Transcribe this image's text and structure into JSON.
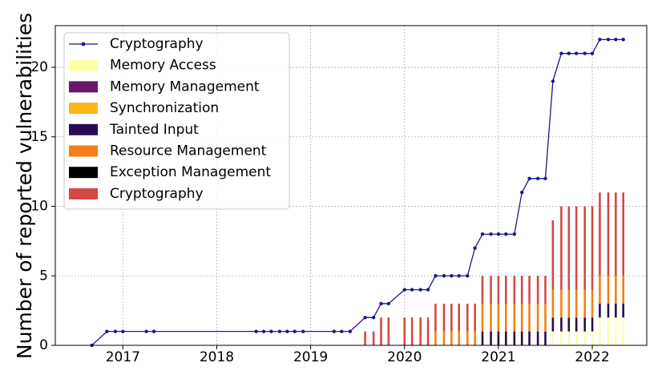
{
  "chart_data": {
    "type": "bar",
    "xlabel": "",
    "ylabel": "Number of reported vulnerabilities",
    "ylim": [
      0,
      23
    ],
    "yticks": [
      0,
      5,
      10,
      15,
      20
    ],
    "xlim": [
      2016.28,
      2022.58
    ],
    "xticks": [
      2017,
      2018,
      2019,
      2020,
      2021,
      2022
    ],
    "grid": true,
    "legend_position": "upper-left",
    "legend": [
      {
        "label": "Cryptography",
        "kind": "line",
        "color": "#1a1a8c"
      },
      {
        "label": "Memory Access",
        "kind": "bar",
        "color": "#fcffa4"
      },
      {
        "label": "Memory Management",
        "kind": "bar",
        "color": "#6a176e"
      },
      {
        "label": "Synchronization",
        "kind": "bar",
        "color": "#fbb61a"
      },
      {
        "label": "Tainted Input",
        "kind": "bar",
        "color": "#2a0a4e"
      },
      {
        "label": "Resource Management",
        "kind": "bar",
        "color": "#f57d15"
      },
      {
        "label": "Exception Management",
        "kind": "bar",
        "color": "#000004"
      },
      {
        "label": "Cryptography",
        "kind": "bar",
        "color": "#d44842"
      }
    ],
    "line_series": {
      "name": "Cryptography",
      "color": "#1a1a8c",
      "x": [
        2016.67,
        2016.83,
        2016.92,
        2017.0,
        2017.25,
        2017.33,
        2018.42,
        2018.5,
        2018.58,
        2018.67,
        2018.75,
        2018.83,
        2018.92,
        2019.25,
        2019.33,
        2019.42,
        2019.58,
        2019.67,
        2019.75,
        2019.83,
        2020.0,
        2020.08,
        2020.17,
        2020.25,
        2020.33,
        2020.42,
        2020.5,
        2020.58,
        2020.67,
        2020.75,
        2020.83,
        2020.92,
        2021.0,
        2021.08,
        2021.17,
        2021.25,
        2021.33,
        2021.42,
        2021.5,
        2021.58,
        2021.67,
        2021.75,
        2021.83,
        2021.92,
        2022.0,
        2022.08,
        2022.17,
        2022.25,
        2022.33
      ],
      "y": [
        0,
        1,
        1,
        1,
        1,
        1,
        1,
        1,
        1,
        1,
        1,
        1,
        1,
        1,
        1,
        1,
        2,
        2,
        3,
        3,
        4,
        4,
        4,
        4,
        5,
        5,
        5,
        5,
        5,
        7,
        8,
        8,
        8,
        8,
        8,
        11,
        12,
        12,
        12,
        19,
        21,
        21,
        21,
        21,
        21,
        22,
        22,
        22,
        22
      ]
    },
    "bar_width_years": 0.022,
    "bars": [
      {
        "x": 2019.58,
        "segments": [
          {
            "category": "Cryptography",
            "value": 1
          }
        ]
      },
      {
        "x": 2019.67,
        "segments": [
          {
            "category": "Cryptography",
            "value": 1
          }
        ]
      },
      {
        "x": 2019.75,
        "segments": [
          {
            "category": "Cryptography",
            "value": 2
          }
        ]
      },
      {
        "x": 2019.83,
        "segments": [
          {
            "category": "Cryptography",
            "value": 2
          }
        ]
      },
      {
        "x": 2020.0,
        "segments": [
          {
            "category": "Cryptography",
            "value": 2
          }
        ]
      },
      {
        "x": 2020.08,
        "segments": [
          {
            "category": "Cryptography",
            "value": 2
          }
        ]
      },
      {
        "x": 2020.17,
        "segments": [
          {
            "category": "Cryptography",
            "value": 2
          }
        ]
      },
      {
        "x": 2020.25,
        "segments": [
          {
            "category": "Cryptography",
            "value": 2
          }
        ]
      },
      {
        "x": 2020.33,
        "segments": [
          {
            "category": "Resource Management",
            "value": 1
          },
          {
            "category": "Cryptography",
            "value": 2
          }
        ]
      },
      {
        "x": 2020.42,
        "segments": [
          {
            "category": "Resource Management",
            "value": 1
          },
          {
            "category": "Cryptography",
            "value": 2
          }
        ]
      },
      {
        "x": 2020.5,
        "segments": [
          {
            "category": "Resource Management",
            "value": 1
          },
          {
            "category": "Cryptography",
            "value": 2
          }
        ]
      },
      {
        "x": 2020.58,
        "segments": [
          {
            "category": "Resource Management",
            "value": 1
          },
          {
            "category": "Cryptography",
            "value": 2
          }
        ]
      },
      {
        "x": 2020.67,
        "segments": [
          {
            "category": "Resource Management",
            "value": 1
          },
          {
            "category": "Cryptography",
            "value": 2
          }
        ]
      },
      {
        "x": 2020.75,
        "segments": [
          {
            "category": "Resource Management",
            "value": 1
          },
          {
            "category": "Cryptography",
            "value": 2
          }
        ]
      },
      {
        "x": 2020.83,
        "segments": [
          {
            "category": "Tainted Input",
            "value": 1
          },
          {
            "category": "Resource Management",
            "value": 2
          },
          {
            "category": "Cryptography",
            "value": 2
          }
        ]
      },
      {
        "x": 2020.92,
        "segments": [
          {
            "category": "Tainted Input",
            "value": 1
          },
          {
            "category": "Resource Management",
            "value": 2
          },
          {
            "category": "Cryptography",
            "value": 2
          }
        ]
      },
      {
        "x": 2021.0,
        "segments": [
          {
            "category": "Tainted Input",
            "value": 1
          },
          {
            "category": "Resource Management",
            "value": 2
          },
          {
            "category": "Cryptography",
            "value": 2
          }
        ]
      },
      {
        "x": 2021.08,
        "segments": [
          {
            "category": "Tainted Input",
            "value": 1
          },
          {
            "category": "Resource Management",
            "value": 2
          },
          {
            "category": "Cryptography",
            "value": 2
          }
        ]
      },
      {
        "x": 2021.17,
        "segments": [
          {
            "category": "Tainted Input",
            "value": 1
          },
          {
            "category": "Resource Management",
            "value": 2
          },
          {
            "category": "Cryptography",
            "value": 2
          }
        ]
      },
      {
        "x": 2021.25,
        "segments": [
          {
            "category": "Tainted Input",
            "value": 1
          },
          {
            "category": "Resource Management",
            "value": 2
          },
          {
            "category": "Cryptography",
            "value": 2
          }
        ]
      },
      {
        "x": 2021.33,
        "segments": [
          {
            "category": "Tainted Input",
            "value": 1
          },
          {
            "category": "Resource Management",
            "value": 2
          },
          {
            "category": "Cryptography",
            "value": 2
          }
        ]
      },
      {
        "x": 2021.42,
        "segments": [
          {
            "category": "Tainted Input",
            "value": 1
          },
          {
            "category": "Resource Management",
            "value": 2
          },
          {
            "category": "Cryptography",
            "value": 2
          }
        ]
      },
      {
        "x": 2021.5,
        "segments": [
          {
            "category": "Tainted Input",
            "value": 1
          },
          {
            "category": "Resource Management",
            "value": 2
          },
          {
            "category": "Cryptography",
            "value": 2
          }
        ]
      },
      {
        "x": 2021.58,
        "segments": [
          {
            "category": "Memory Access",
            "value": 1
          },
          {
            "category": "Tainted Input",
            "value": 1
          },
          {
            "category": "Resource Management",
            "value": 2
          },
          {
            "category": "Cryptography",
            "value": 5
          }
        ]
      },
      {
        "x": 2021.67,
        "segments": [
          {
            "category": "Memory Access",
            "value": 1
          },
          {
            "category": "Tainted Input",
            "value": 1
          },
          {
            "category": "Resource Management",
            "value": 2
          },
          {
            "category": "Cryptography",
            "value": 6
          }
        ]
      },
      {
        "x": 2021.75,
        "segments": [
          {
            "category": "Memory Access",
            "value": 1
          },
          {
            "category": "Tainted Input",
            "value": 1
          },
          {
            "category": "Resource Management",
            "value": 2
          },
          {
            "category": "Cryptography",
            "value": 6
          }
        ]
      },
      {
        "x": 2021.83,
        "segments": [
          {
            "category": "Memory Access",
            "value": 1
          },
          {
            "category": "Tainted Input",
            "value": 1
          },
          {
            "category": "Resource Management",
            "value": 2
          },
          {
            "category": "Cryptography",
            "value": 6
          }
        ]
      },
      {
        "x": 2021.92,
        "segments": [
          {
            "category": "Memory Access",
            "value": 1
          },
          {
            "category": "Tainted Input",
            "value": 1
          },
          {
            "category": "Resource Management",
            "value": 2
          },
          {
            "category": "Cryptography",
            "value": 6
          }
        ]
      },
      {
        "x": 2022.0,
        "segments": [
          {
            "category": "Memory Access",
            "value": 1
          },
          {
            "category": "Tainted Input",
            "value": 1
          },
          {
            "category": "Resource Management",
            "value": 2
          },
          {
            "category": "Cryptography",
            "value": 6
          }
        ]
      },
      {
        "x": 2022.08,
        "segments": [
          {
            "category": "Memory Access",
            "value": 2
          },
          {
            "category": "Tainted Input",
            "value": 1
          },
          {
            "category": "Resource Management",
            "value": 2
          },
          {
            "category": "Cryptography",
            "value": 6
          }
        ]
      },
      {
        "x": 2022.17,
        "segments": [
          {
            "category": "Memory Access",
            "value": 2
          },
          {
            "category": "Tainted Input",
            "value": 1
          },
          {
            "category": "Resource Management",
            "value": 2
          },
          {
            "category": "Cryptography",
            "value": 6
          }
        ]
      },
      {
        "x": 2022.25,
        "segments": [
          {
            "category": "Memory Access",
            "value": 2
          },
          {
            "category": "Tainted Input",
            "value": 1
          },
          {
            "category": "Resource Management",
            "value": 2
          },
          {
            "category": "Cryptography",
            "value": 6
          }
        ]
      },
      {
        "x": 2022.33,
        "segments": [
          {
            "category": "Memory Access",
            "value": 2
          },
          {
            "category": "Tainted Input",
            "value": 1
          },
          {
            "category": "Resource Management",
            "value": 2
          },
          {
            "category": "Cryptography",
            "value": 6
          }
        ]
      }
    ],
    "category_colors": {
      "Memory Access": "#fcffa4",
      "Memory Management": "#6a176e",
      "Synchronization": "#fbb61a",
      "Tainted Input": "#2a0a4e",
      "Resource Management": "#f57d15",
      "Exception Management": "#000004",
      "Cryptography": "#d44842"
    }
  }
}
